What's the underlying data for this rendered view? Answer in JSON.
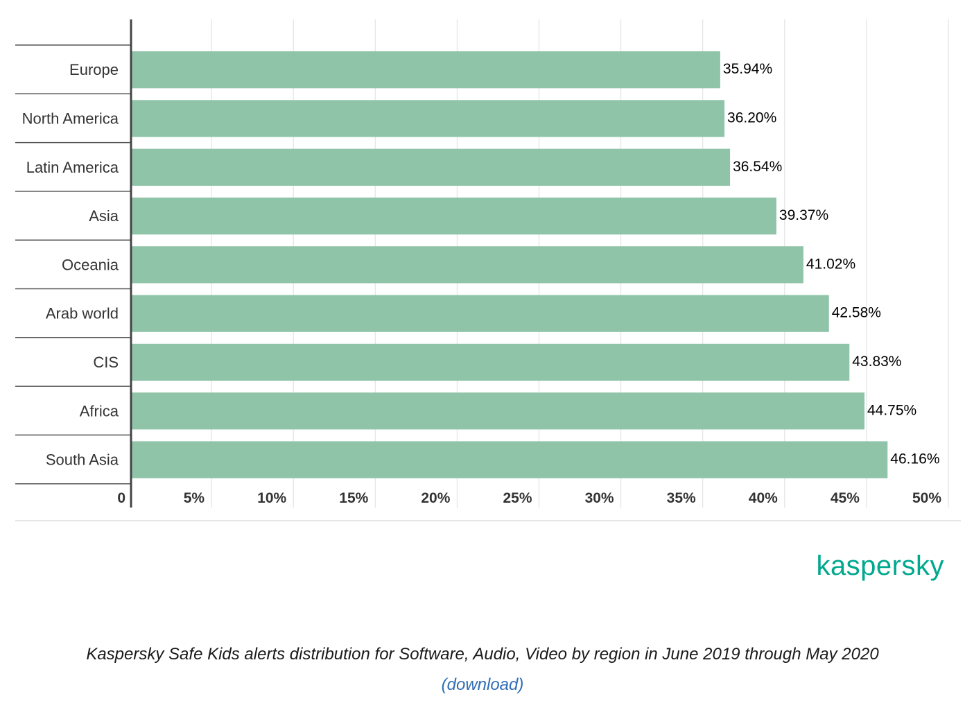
{
  "chart_data": {
    "type": "bar",
    "orientation": "horizontal",
    "categories": [
      "Europe",
      "North America",
      "Latin America",
      "Asia",
      "Oceania",
      "Arab world",
      "CIS",
      "Africa",
      "South Asia"
    ],
    "values": [
      35.94,
      36.2,
      36.54,
      39.37,
      41.02,
      42.58,
      43.83,
      44.75,
      46.16
    ],
    "value_labels": [
      "35.94%",
      "36.20%",
      "36.54%",
      "39.37%",
      "41.02%",
      "42.58%",
      "43.83%",
      "44.75%",
      "46.16%"
    ],
    "x_ticks": [
      0,
      5,
      10,
      15,
      20,
      25,
      30,
      35,
      40,
      45,
      50
    ],
    "x_tick_labels": [
      "0",
      "5%",
      "10%",
      "15%",
      "20%",
      "25%",
      "30%",
      "35%",
      "40%",
      "45%",
      "50%"
    ],
    "xlim": [
      0,
      50
    ],
    "grid": true,
    "bar_color": "#8FC4A9",
    "title": "",
    "xlabel": "",
    "ylabel": ""
  },
  "brand": {
    "logo_text": "kaspersky",
    "color": "#00A88E"
  },
  "caption": {
    "text": "Kaspersky Safe Kids alerts distribution for Software, Audio, Video by region in June 2019 through May 2020",
    "link_text": "(download)"
  }
}
